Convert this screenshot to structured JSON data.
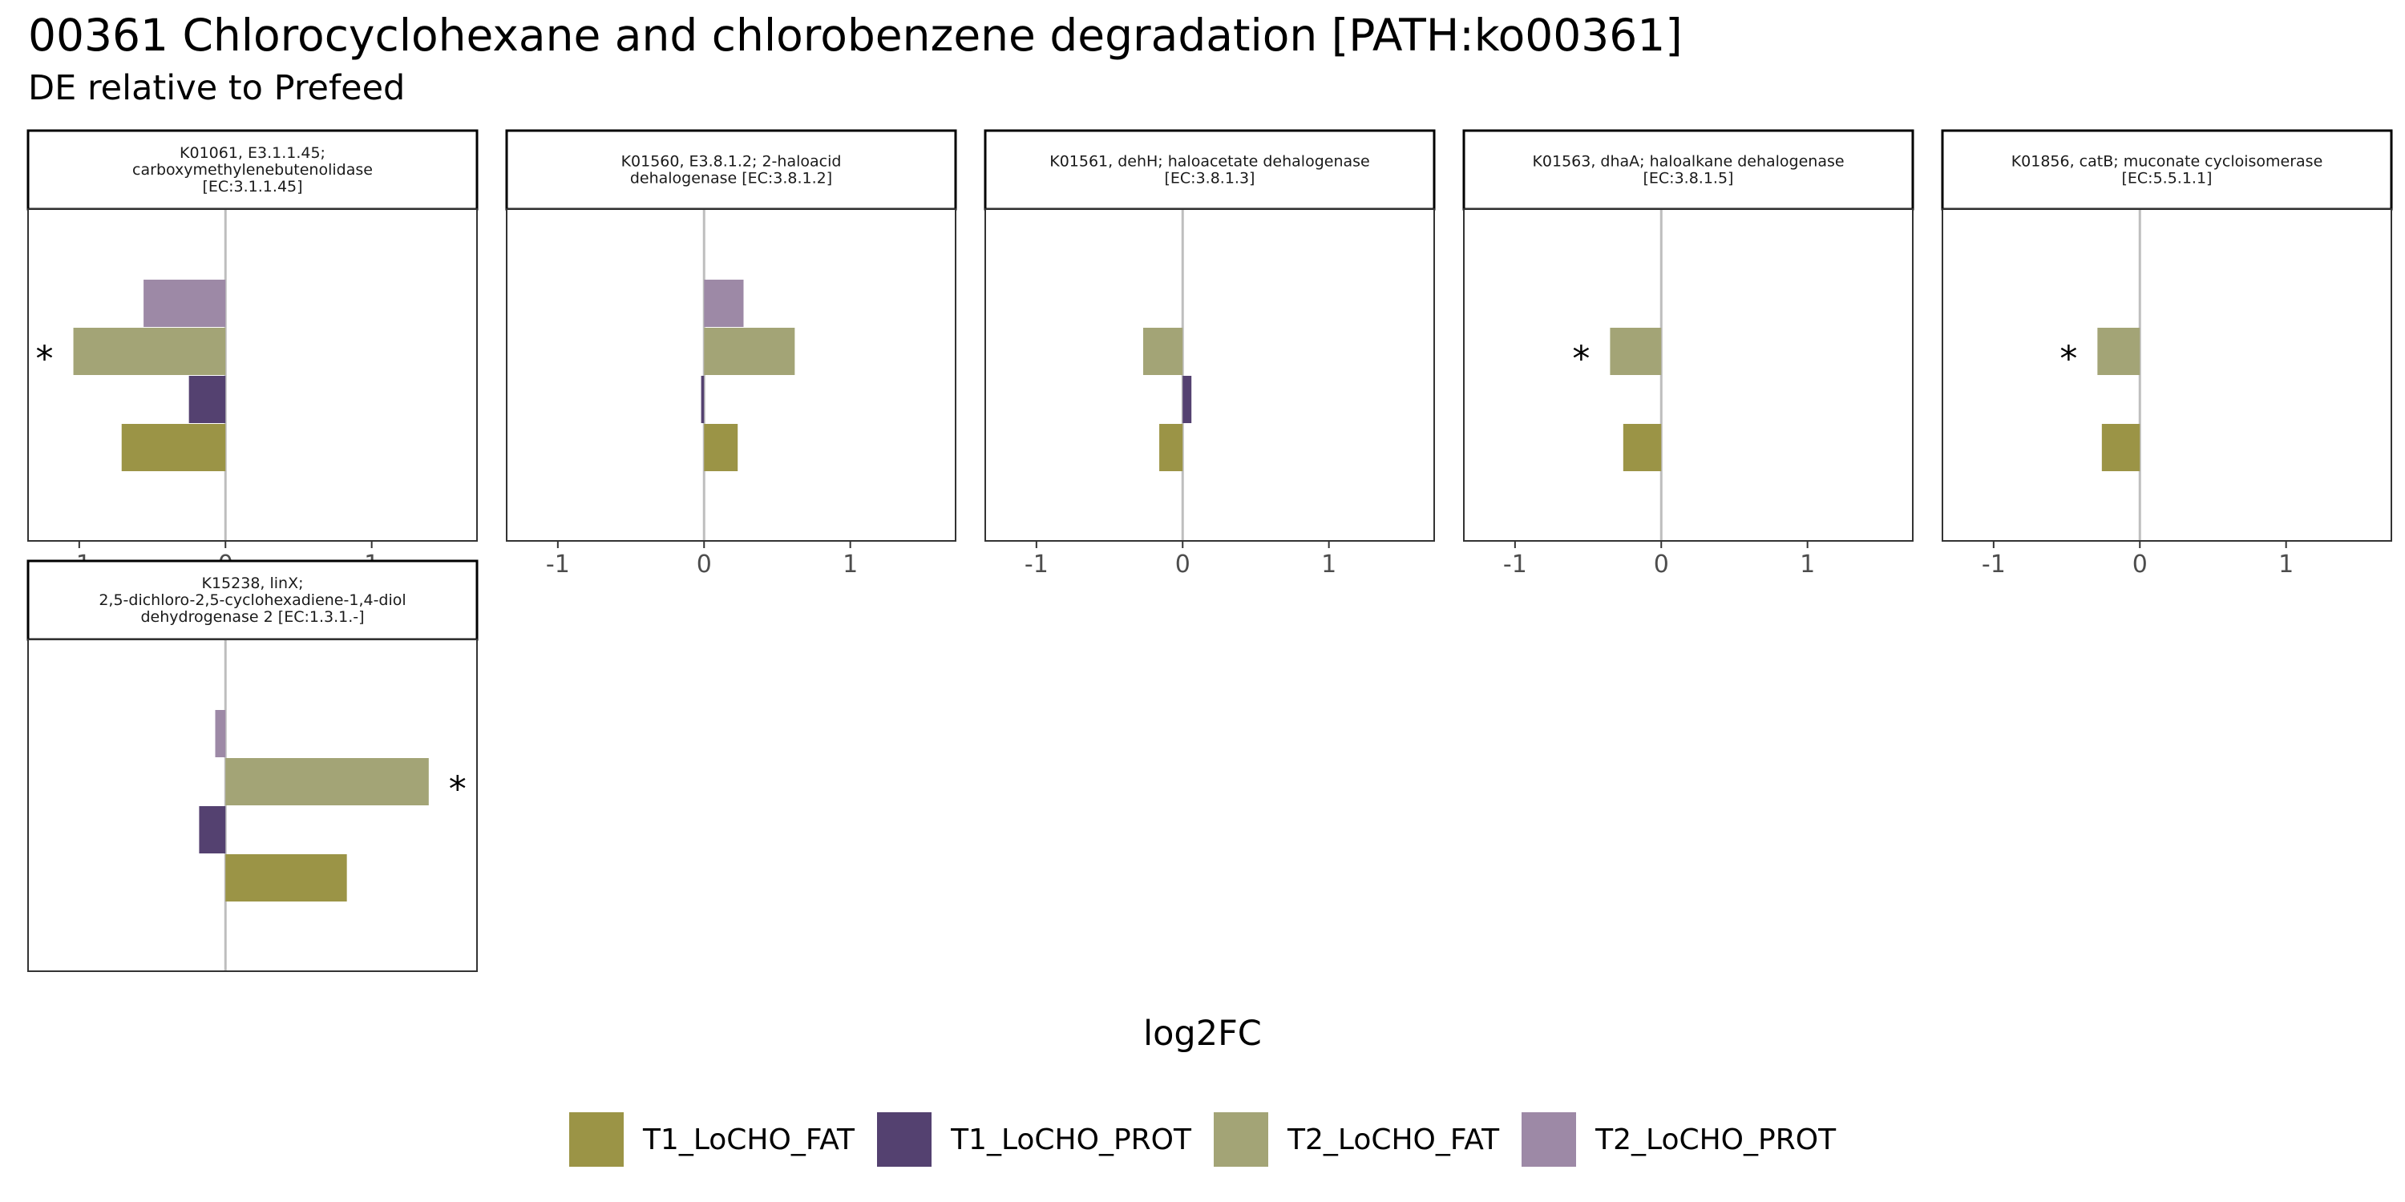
{
  "title": "00361 Chlorocyclohexane and chlorobenzene degradation [PATH:ko00361]",
  "subtitle": "DE relative to Prefeed",
  "colors": {
    "T1_LoCHO_FAT": "#9b9446",
    "T1_LoCHO_PROT": "#544170",
    "T2_LoCHO_FAT": "#a3a476",
    "T2_LoCHO_PROT": "#9d89a6",
    "zero_line": "#bebebe",
    "panel_border": "#333333"
  },
  "chart_data": {
    "type": "bar",
    "orientation": "horizontal",
    "xlabel": "log2FC",
    "ylabel": "",
    "xlim": [
      -1.35,
      1.72
    ],
    "xticks": [
      -1,
      0,
      1
    ],
    "xtick_labels": [
      "-1",
      "0",
      "1"
    ],
    "categories": [
      "T2_LoCHO_PROT",
      "T2_LoCHO_FAT",
      "T1_LoCHO_PROT",
      "T1_LoCHO_FAT"
    ],
    "legend": {
      "position": "bottom",
      "entries": [
        "T1_LoCHO_FAT",
        "T1_LoCHO_PROT",
        "T2_LoCHO_FAT",
        "T2_LoCHO_PROT"
      ]
    },
    "significance_marker": "*",
    "panels": [
      {
        "strip": [
          "K01061, E3.1.1.45;",
          "carboxymethylenebutenolidase",
          "[EC:3.1.1.45]"
        ],
        "values": {
          "T2_LoCHO_PROT": -0.56,
          "T2_LoCHO_FAT": -1.04,
          "T1_LoCHO_PROT": -0.25,
          "T1_LoCHO_FAT": -0.71
        },
        "significant": [
          "T2_LoCHO_FAT"
        ]
      },
      {
        "strip": [
          "K01560, E3.8.1.2; 2-haloacid",
          "dehalogenase [EC:3.8.1.2]"
        ],
        "values": {
          "T2_LoCHO_PROT": 0.27,
          "T2_LoCHO_FAT": 0.62,
          "T1_LoCHO_PROT": -0.02,
          "T1_LoCHO_FAT": 0.23
        },
        "significant": []
      },
      {
        "strip": [
          "K01561, dehH; haloacetate dehalogenase",
          "[EC:3.8.1.3]"
        ],
        "values": {
          "T2_LoCHO_FAT": -0.27,
          "T1_LoCHO_PROT": 0.06,
          "T1_LoCHO_FAT": -0.16
        },
        "significant": []
      },
      {
        "strip": [
          "K01563, dhaA; haloalkane dehalogenase",
          "[EC:3.8.1.5]"
        ],
        "values": {
          "T2_LoCHO_FAT": -0.35,
          "T1_LoCHO_FAT": -0.26
        },
        "significant": [
          "T2_LoCHO_FAT"
        ]
      },
      {
        "strip": [
          "K01856, catB; muconate cycloisomerase",
          "[EC:5.5.1.1]"
        ],
        "values": {
          "T2_LoCHO_FAT": -0.29,
          "T1_LoCHO_FAT": -0.26
        },
        "significant": [
          "T2_LoCHO_FAT"
        ]
      },
      {
        "strip": [
          "K15238, linX;",
          "2,5-dichloro-2,5-cyclohexadiene-1,4-diol",
          "dehydrogenase 2 [EC:1.3.1.-]"
        ],
        "values": {
          "T2_LoCHO_PROT": -0.07,
          "T2_LoCHO_FAT": 1.39,
          "T1_LoCHO_PROT": -0.18,
          "T1_LoCHO_FAT": 0.83
        },
        "significant": [
          "T2_LoCHO_FAT"
        ]
      }
    ]
  }
}
